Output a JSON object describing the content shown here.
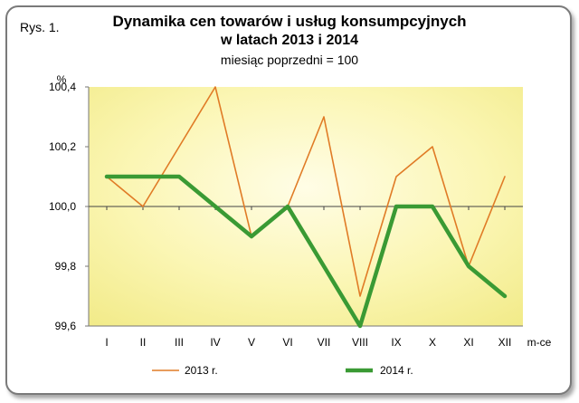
{
  "figure": {
    "label": "Rys. 1.",
    "title_line1": "Dynamika cen towarów i usług konsumpcyjnych",
    "title_line2": "w latach 2013 i 2014",
    "title_line3": "miesiąc poprzedni = 100"
  },
  "chart_data": {
    "type": "line",
    "title": "Dynamika cen towarów i usług konsumpcyjnych w latach 2013 i 2014",
    "subtitle": "miesiąc poprzedni = 100",
    "ylabel": "%",
    "xlabel": "m-ce",
    "categories": [
      "I",
      "II",
      "III",
      "IV",
      "V",
      "VI",
      "VII",
      "VIII",
      "IX",
      "X",
      "XI",
      "XII"
    ],
    "ylim": [
      99.6,
      100.4
    ],
    "yticks": [
      "99,6",
      "99,8",
      "100,0",
      "100,2",
      "100,4"
    ],
    "ytick_values": [
      99.6,
      99.8,
      100.0,
      100.2,
      100.4
    ],
    "baseline": 100.0,
    "grid": false,
    "legend_position": "bottom",
    "series": [
      {
        "name": "2013 r.",
        "color": "#e07b26",
        "values": [
          100.1,
          100.0,
          100.2,
          100.4,
          99.9,
          100.0,
          100.3,
          99.7,
          100.1,
          100.2,
          99.8,
          100.1
        ]
      },
      {
        "name": "2014 r.",
        "color": "#3a9a34",
        "values": [
          100.1,
          100.1,
          100.1,
          100.0,
          99.9,
          100.0,
          99.8,
          99.6,
          100.0,
          100.0,
          99.8,
          99.7
        ]
      }
    ]
  }
}
